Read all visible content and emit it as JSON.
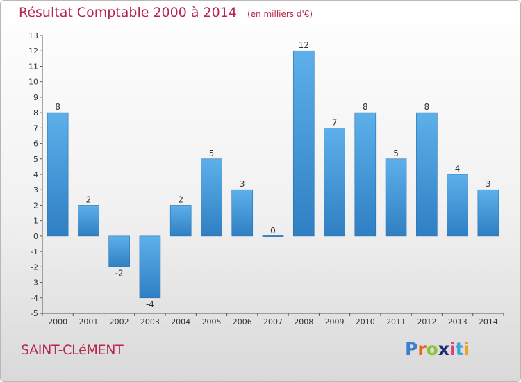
{
  "title": "Résultat Comptable 2000 à 2014",
  "subtitle": "(en milliers d'€)",
  "city": "SAINT-CLéMENT",
  "logo": {
    "letters": [
      "P",
      "r",
      "o",
      "x",
      "i",
      "t",
      "i"
    ],
    "colors": [
      "#3a7fd0",
      "#e6641e",
      "#8cc43c",
      "#1c2e6e",
      "#e23d7a",
      "#3aa7dd",
      "#f0a21e"
    ]
  },
  "colors": {
    "bar_light": "#5db0ea",
    "bar_dark": "#2f7fc3",
    "title": "#b5284e"
  },
  "chart_data": {
    "type": "bar",
    "title": "Résultat Comptable 2000 à 2014",
    "ylabel": "(en milliers d'€)",
    "categories": [
      "2000",
      "2001",
      "2002",
      "2003",
      "2004",
      "2005",
      "2006",
      "2007",
      "2008",
      "2009",
      "2010",
      "2011",
      "2012",
      "2013",
      "2014"
    ],
    "values": [
      8,
      2,
      -2,
      -4,
      2,
      5,
      3,
      0,
      12,
      7,
      8,
      5,
      8,
      4,
      3
    ],
    "labels": [
      "8",
      "2",
      "-2",
      "-4",
      "2",
      "5",
      "3",
      "0",
      "12",
      "7",
      "8",
      "5",
      "8",
      "4",
      "3"
    ],
    "yticks": [
      "-5",
      "-4",
      "-3",
      "-2",
      "-1",
      "0",
      "1",
      "2",
      "3",
      "4",
      "5",
      "6",
      "7",
      "8",
      "9",
      "10",
      "11",
      "12",
      "13"
    ],
    "ylim": [
      -5,
      13
    ],
    "grid": false,
    "legend": "none"
  }
}
